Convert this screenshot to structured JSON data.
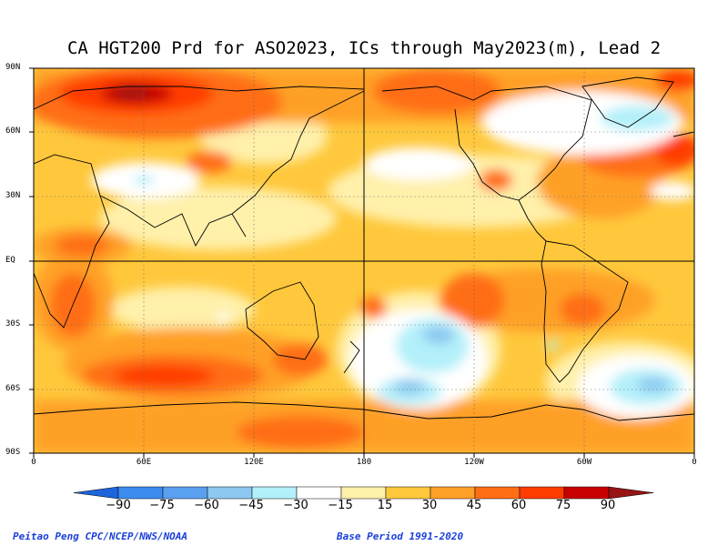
{
  "title": "CA HGT200 Prd for ASO2023, ICs through May2023(m), Lead 2",
  "lat_labels": [
    "90N",
    "60N",
    "30N",
    "EQ",
    "30S",
    "60S",
    "90S"
  ],
  "lon_labels": [
    "0",
    "60E",
    "120E",
    "180",
    "120W",
    "60W",
    "0"
  ],
  "colorbar": {
    "labels": [
      "−90",
      "−75",
      "−60",
      "−45",
      "−30",
      "−15",
      "15",
      "30",
      "45",
      "60",
      "75",
      "90"
    ],
    "colors": [
      "#1e64dc",
      "#3c8cf0",
      "#5aa0f0",
      "#8cc8f0",
      "#b4f0fa",
      "#ffffff",
      "#fff0aa",
      "#ffc83c",
      "#ffa028",
      "#ff6e14",
      "#ff3c00",
      "#c80000",
      "#961414"
    ]
  },
  "footer": {
    "left": "Peitao Peng CPC/NCEP/NWS/NOAA",
    "right": "Base Period 1991-2020"
  }
}
